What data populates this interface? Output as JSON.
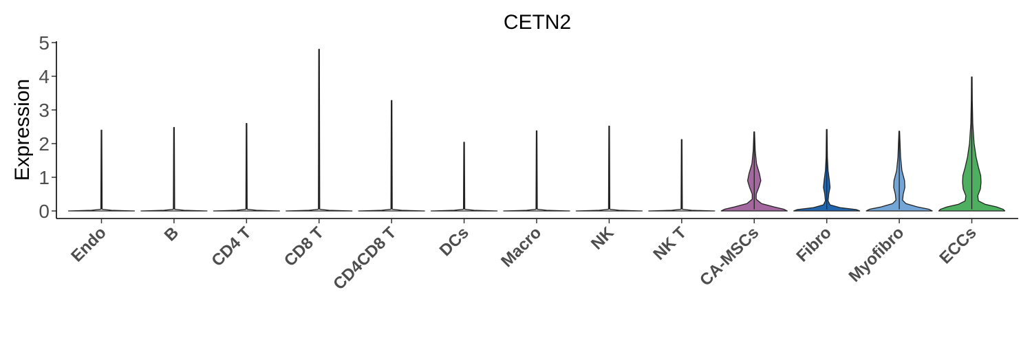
{
  "chart_data": {
    "type": "violin",
    "title": "CETN2",
    "xlabel": "",
    "ylabel": "Expression",
    "ylim": [
      0,
      5
    ],
    "yticks": [
      "0",
      "1",
      "2",
      "3",
      "4",
      "5"
    ],
    "grid": false,
    "legend": "none",
    "categories": [
      "Endo",
      "B",
      "CD4 T",
      "CD8 T",
      "CD4CD8 T",
      "DCs",
      "Macro",
      "NK",
      "NK T",
      "CA-MSCs",
      "Fibro",
      "Myofibro",
      "ECCs"
    ],
    "series": [
      {
        "category": "Endo",
        "max": 2.4,
        "color": "#ffffff",
        "profile": [
          [
            0,
            1.0
          ],
          [
            0.02,
            0.3
          ],
          [
            0.05,
            0.02
          ],
          [
            2.4,
            0.01
          ]
        ]
      },
      {
        "category": "B",
        "max": 2.48,
        "color": "#ffffff",
        "profile": [
          [
            0,
            1.0
          ],
          [
            0.02,
            0.3
          ],
          [
            0.05,
            0.02
          ],
          [
            2.48,
            0.01
          ]
        ]
      },
      {
        "category": "CD4 T",
        "max": 2.6,
        "color": "#ffffff",
        "profile": [
          [
            0,
            1.0
          ],
          [
            0.02,
            0.3
          ],
          [
            0.05,
            0.02
          ],
          [
            2.6,
            0.01
          ]
        ]
      },
      {
        "category": "CD8 T",
        "max": 4.8,
        "color": "#ffffff",
        "profile": [
          [
            0,
            1.0
          ],
          [
            0.02,
            0.3
          ],
          [
            0.05,
            0.02
          ],
          [
            4.8,
            0.01
          ]
        ]
      },
      {
        "category": "CD4CD8 T",
        "max": 3.28,
        "color": "#ffffff",
        "profile": [
          [
            0,
            1.0
          ],
          [
            0.02,
            0.3
          ],
          [
            0.05,
            0.02
          ],
          [
            3.28,
            0.01
          ]
        ]
      },
      {
        "category": "DCs",
        "max": 2.04,
        "color": "#ffffff",
        "profile": [
          [
            0,
            1.0
          ],
          [
            0.02,
            0.3
          ],
          [
            0.05,
            0.02
          ],
          [
            2.04,
            0.01
          ]
        ]
      },
      {
        "category": "Macro",
        "max": 2.38,
        "color": "#ffffff",
        "profile": [
          [
            0,
            1.0
          ],
          [
            0.02,
            0.3
          ],
          [
            0.05,
            0.02
          ],
          [
            2.38,
            0.01
          ]
        ]
      },
      {
        "category": "NK",
        "max": 2.52,
        "color": "#ffffff",
        "profile": [
          [
            0,
            1.0
          ],
          [
            0.02,
            0.3
          ],
          [
            0.05,
            0.02
          ],
          [
            2.52,
            0.01
          ]
        ]
      },
      {
        "category": "NK T",
        "max": 2.12,
        "color": "#ffffff",
        "profile": [
          [
            0,
            1.0
          ],
          [
            0.02,
            0.3
          ],
          [
            0.05,
            0.02
          ],
          [
            2.12,
            0.01
          ]
        ]
      },
      {
        "category": "CA-MSCs",
        "max": 2.35,
        "color": "#A3689D",
        "profile": [
          [
            0,
            1.0
          ],
          [
            0.05,
            0.9
          ],
          [
            0.12,
            0.6
          ],
          [
            0.22,
            0.22
          ],
          [
            0.35,
            0.06
          ],
          [
            0.5,
            0.06
          ],
          [
            0.7,
            0.14
          ],
          [
            0.9,
            0.2
          ],
          [
            1.1,
            0.16
          ],
          [
            1.4,
            0.07
          ],
          [
            1.8,
            0.03
          ],
          [
            2.35,
            0.01
          ]
        ]
      },
      {
        "category": "Fibro",
        "max": 2.42,
        "color": "#2166AC",
        "profile": [
          [
            0,
            1.0
          ],
          [
            0.04,
            0.9
          ],
          [
            0.1,
            0.4
          ],
          [
            0.18,
            0.1
          ],
          [
            0.3,
            0.04
          ],
          [
            0.5,
            0.06
          ],
          [
            0.7,
            0.1
          ],
          [
            0.9,
            0.08
          ],
          [
            1.2,
            0.04
          ],
          [
            1.6,
            0.02
          ],
          [
            2.42,
            0.01
          ]
        ]
      },
      {
        "category": "Myofibro",
        "max": 2.37,
        "color": "#73A5D6",
        "profile": [
          [
            0,
            1.0
          ],
          [
            0.05,
            0.9
          ],
          [
            0.12,
            0.55
          ],
          [
            0.22,
            0.2
          ],
          [
            0.32,
            0.1
          ],
          [
            0.5,
            0.12
          ],
          [
            0.7,
            0.17
          ],
          [
            0.9,
            0.16
          ],
          [
            1.2,
            0.08
          ],
          [
            1.6,
            0.04
          ],
          [
            2.37,
            0.01
          ]
        ]
      },
      {
        "category": "ECCs",
        "max": 3.98,
        "color": "#4DAF5F",
        "profile": [
          [
            0,
            1.0
          ],
          [
            0.05,
            0.95
          ],
          [
            0.12,
            0.75
          ],
          [
            0.2,
            0.4
          ],
          [
            0.3,
            0.2
          ],
          [
            0.45,
            0.18
          ],
          [
            0.65,
            0.26
          ],
          [
            0.85,
            0.28
          ],
          [
            1.05,
            0.27
          ],
          [
            1.3,
            0.2
          ],
          [
            1.6,
            0.13
          ],
          [
            2.0,
            0.07
          ],
          [
            2.6,
            0.03
          ],
          [
            3.3,
            0.015
          ],
          [
            3.98,
            0.01
          ]
        ]
      }
    ]
  }
}
